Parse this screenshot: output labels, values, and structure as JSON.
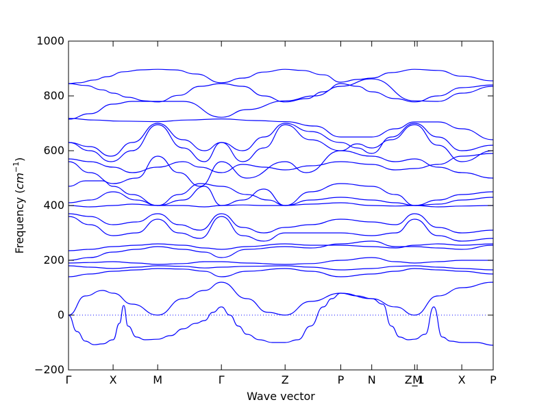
{
  "chart_data": {
    "type": "line",
    "title": "",
    "xlabel": "Wave vector",
    "ylabel": "Frequency",
    "ylabel_unit": "cm",
    "ylabel_unit_exp": "−1",
    "ylim": [
      -200,
      1000
    ],
    "yticks": [
      -200,
      0,
      200,
      400,
      600,
      800,
      1000
    ],
    "line_color": "#0000ff",
    "zero_line": {
      "y": 0,
      "style": "dotted"
    },
    "k_points": [
      {
        "label": "Γ",
        "x": 0.0
      },
      {
        "label": "X",
        "x": 0.105
      },
      {
        "label": "M",
        "x": 0.21
      },
      {
        "label": "Γ",
        "x": 0.36
      },
      {
        "label": "Z",
        "x": 0.51
      },
      {
        "label": "P",
        "x": 0.641
      },
      {
        "label": "N",
        "x": 0.714
      },
      {
        "label": "Z_1",
        "x": 0.815
      },
      {
        "label": "M",
        "x": 0.821
      },
      {
        "label": "X",
        "x": 0.926
      },
      {
        "label": "P",
        "x": 1.0
      }
    ],
    "xlim": [
      0,
      1
    ],
    "series": [
      {
        "x": [
          0,
          0.025,
          0.06,
          0.09,
          0.13,
          0.17,
          0.21,
          0.25,
          0.3,
          0.36,
          0.41,
          0.46,
          0.51,
          0.55,
          0.6,
          0.641,
          0.68,
          0.714,
          0.76,
          0.815,
          0.87,
          0.926,
          1.0
        ],
        "y": [
          845,
          848,
          858,
          870,
          888,
          895,
          897,
          895,
          880,
          848,
          865,
          887,
          897,
          893,
          877,
          850,
          860,
          865,
          885,
          897,
          893,
          872,
          855
        ]
      },
      {
        "x": [
          0,
          0.04,
          0.08,
          0.105,
          0.14,
          0.18,
          0.21,
          0.26,
          0.31,
          0.36,
          0.41,
          0.46,
          0.51,
          0.56,
          0.6,
          0.641,
          0.68,
          0.714,
          0.77,
          0.815,
          0.87,
          0.926,
          1.0
        ],
        "y": [
          845,
          838,
          822,
          810,
          795,
          782,
          778,
          802,
          835,
          845,
          835,
          800,
          778,
          790,
          815,
          845,
          835,
          815,
          790,
          778,
          800,
          830,
          840
        ]
      },
      {
        "x": [
          0,
          0.05,
          0.105,
          0.15,
          0.21,
          0.27,
          0.36,
          0.42,
          0.51,
          0.58,
          0.641,
          0.714,
          0.815,
          0.87,
          0.926,
          1.0
        ],
        "y": [
          715,
          735,
          770,
          780,
          780,
          780,
          722,
          750,
          782,
          800,
          835,
          862,
          782,
          780,
          810,
          835
        ]
      },
      {
        "x": [
          0,
          0.06,
          0.12,
          0.21,
          0.28,
          0.36,
          0.44,
          0.51,
          0.58,
          0.641,
          0.714,
          0.77,
          0.815,
          0.87,
          0.926,
          1.0
        ],
        "y": [
          718,
          712,
          708,
          706,
          712,
          716,
          710,
          706,
          690,
          650,
          650,
          680,
          705,
          705,
          680,
          640
        ]
      },
      {
        "x": [
          0,
          0.05,
          0.1,
          0.15,
          0.21,
          0.27,
          0.32,
          0.36,
          0.41,
          0.46,
          0.51,
          0.57,
          0.641,
          0.68,
          0.714,
          0.76,
          0.815,
          0.87,
          0.926,
          1.0
        ],
        "y": [
          630,
          615,
          580,
          630,
          700,
          640,
          600,
          630,
          600,
          650,
          700,
          670,
          630,
          610,
          590,
          650,
          700,
          650,
          600,
          620
        ]
      },
      {
        "x": [
          0,
          0.05,
          0.1,
          0.15,
          0.21,
          0.27,
          0.32,
          0.36,
          0.41,
          0.46,
          0.51,
          0.57,
          0.641,
          0.68,
          0.714,
          0.76,
          0.815,
          0.87,
          0.926,
          1.0
        ],
        "y": [
          630,
          600,
          560,
          600,
          695,
          610,
          560,
          630,
          560,
          610,
          695,
          640,
          600,
          625,
          610,
          640,
          695,
          620,
          560,
          600
        ]
      },
      {
        "x": [
          0,
          0.05,
          0.105,
          0.15,
          0.21,
          0.27,
          0.31,
          0.36,
          0.41,
          0.46,
          0.51,
          0.57,
          0.641,
          0.714,
          0.77,
          0.815,
          0.87,
          0.926,
          1.0
        ],
        "y": [
          570,
          560,
          540,
          520,
          540,
          560,
          540,
          520,
          550,
          540,
          530,
          545,
          560,
          550,
          530,
          535,
          550,
          580,
          590
        ]
      },
      {
        "x": [
          0,
          0.05,
          0.105,
          0.16,
          0.21,
          0.26,
          0.31,
          0.36,
          0.42,
          0.51,
          0.56,
          0.641,
          0.714,
          0.77,
          0.815,
          0.87,
          0.926,
          1.0
        ],
        "y": [
          560,
          520,
          480,
          500,
          580,
          520,
          470,
          560,
          500,
          560,
          520,
          600,
          580,
          560,
          570,
          540,
          520,
          500
        ]
      },
      {
        "x": [
          0,
          0.04,
          0.08,
          0.105,
          0.15,
          0.21,
          0.26,
          0.31,
          0.36,
          0.42,
          0.47,
          0.51,
          0.57,
          0.641,
          0.714,
          0.77,
          0.815,
          0.87,
          0.926,
          1.0
        ],
        "y": [
          470,
          490,
          490,
          470,
          440,
          400,
          440,
          480,
          470,
          440,
          420,
          400,
          450,
          480,
          470,
          440,
          400,
          420,
          440,
          450
        ]
      },
      {
        "x": [
          0,
          0.05,
          0.105,
          0.16,
          0.21,
          0.27,
          0.32,
          0.36,
          0.41,
          0.46,
          0.51,
          0.57,
          0.641,
          0.714,
          0.77,
          0.815,
          0.87,
          0.926,
          1.0
        ],
        "y": [
          410,
          420,
          450,
          420,
          400,
          420,
          470,
          400,
          420,
          460,
          400,
          420,
          430,
          420,
          410,
          400,
          405,
          420,
          430
        ]
      },
      {
        "x": [
          0,
          0.05,
          0.105,
          0.15,
          0.21,
          0.27,
          0.32,
          0.36,
          0.41,
          0.46,
          0.51,
          0.57,
          0.641,
          0.714,
          0.77,
          0.815,
          0.87,
          0.926,
          1.0
        ],
        "y": [
          400,
          395,
          400,
          405,
          400,
          400,
          395,
          400,
          402,
          400,
          400,
          405,
          410,
          400,
          398,
          400,
          395,
          398,
          400
        ]
      },
      {
        "x": [
          0,
          0.05,
          0.105,
          0.16,
          0.21,
          0.26,
          0.31,
          0.36,
          0.41,
          0.46,
          0.51,
          0.57,
          0.641,
          0.714,
          0.77,
          0.815,
          0.87,
          0.926,
          1.0
        ],
        "y": [
          370,
          360,
          330,
          340,
          370,
          330,
          310,
          370,
          320,
          300,
          320,
          330,
          350,
          340,
          330,
          370,
          320,
          300,
          310
        ]
      },
      {
        "x": [
          0,
          0.05,
          0.105,
          0.16,
          0.21,
          0.26,
          0.31,
          0.36,
          0.41,
          0.46,
          0.51,
          0.57,
          0.641,
          0.714,
          0.77,
          0.815,
          0.87,
          0.926,
          1.0
        ],
        "y": [
          360,
          330,
          290,
          300,
          350,
          300,
          280,
          360,
          290,
          270,
          300,
          300,
          300,
          290,
          300,
          350,
          290,
          270,
          280
        ]
      },
      {
        "x": [
          0,
          0.05,
          0.105,
          0.16,
          0.21,
          0.27,
          0.32,
          0.36,
          0.42,
          0.51,
          0.57,
          0.641,
          0.714,
          0.77,
          0.815,
          0.87,
          0.926,
          1.0
        ],
        "y": [
          235,
          240,
          250,
          255,
          260,
          255,
          245,
          240,
          250,
          260,
          255,
          255,
          250,
          245,
          255,
          260,
          255,
          260
        ]
      },
      {
        "x": [
          0,
          0.05,
          0.105,
          0.16,
          0.21,
          0.27,
          0.32,
          0.36,
          0.42,
          0.51,
          0.57,
          0.641,
          0.714,
          0.77,
          0.815,
          0.87,
          0.926,
          1.0
        ],
        "y": [
          200,
          210,
          230,
          240,
          250,
          240,
          230,
          210,
          240,
          250,
          245,
          260,
          270,
          250,
          250,
          245,
          240,
          255
        ]
      },
      {
        "x": [
          0,
          0.05,
          0.105,
          0.16,
          0.21,
          0.27,
          0.32,
          0.36,
          0.42,
          0.51,
          0.57,
          0.641,
          0.714,
          0.77,
          0.815,
          0.87,
          0.926,
          1.0
        ],
        "y": [
          190,
          192,
          195,
          190,
          185,
          188,
          195,
          195,
          190,
          185,
          188,
          200,
          210,
          195,
          190,
          195,
          200,
          200
        ]
      },
      {
        "x": [
          0,
          0.05,
          0.105,
          0.16,
          0.21,
          0.27,
          0.32,
          0.36,
          0.42,
          0.51,
          0.57,
          0.641,
          0.714,
          0.77,
          0.815,
          0.87,
          0.926,
          1.0
        ],
        "y": [
          180,
          175,
          170,
          175,
          180,
          178,
          172,
          175,
          178,
          180,
          175,
          165,
          170,
          178,
          180,
          175,
          170,
          165
        ]
      },
      {
        "x": [
          0,
          0.05,
          0.105,
          0.16,
          0.21,
          0.27,
          0.32,
          0.36,
          0.42,
          0.51,
          0.57,
          0.641,
          0.714,
          0.77,
          0.815,
          0.87,
          0.926,
          1.0
        ],
        "y": [
          140,
          150,
          160,
          165,
          170,
          168,
          160,
          140,
          160,
          170,
          160,
          140,
          150,
          160,
          170,
          165,
          160,
          150
        ]
      },
      {
        "x": [
          0,
          0.04,
          0.08,
          0.105,
          0.15,
          0.21,
          0.27,
          0.32,
          0.36,
          0.42,
          0.47,
          0.51,
          0.57,
          0.641,
          0.714,
          0.77,
          0.815,
          0.87,
          0.926,
          1.0
        ],
        "y": [
          0,
          70,
          90,
          80,
          40,
          0,
          60,
          90,
          120,
          60,
          10,
          0,
          50,
          80,
          60,
          30,
          0,
          70,
          100,
          120
        ]
      },
      {
        "x": [
          0,
          0.02,
          0.04,
          0.06,
          0.08,
          0.105,
          0.12,
          0.13,
          0.14,
          0.16,
          0.18,
          0.21,
          0.24,
          0.27,
          0.3,
          0.32,
          0.34,
          0.36
        ],
        "y": [
          0,
          -60,
          -95,
          -108,
          -105,
          -90,
          -30,
          35,
          -40,
          -80,
          -90,
          -88,
          -75,
          -50,
          -30,
          -20,
          10,
          30
        ]
      },
      {
        "x": [
          0.36,
          0.38,
          0.4,
          0.42,
          0.45,
          0.48,
          0.51,
          0.54,
          0.57,
          0.6,
          0.62,
          0.641,
          0.68,
          0.714,
          0.74,
          0.76,
          0.78,
          0.8,
          0.815,
          0.84,
          0.86,
          0.88,
          0.9,
          0.926,
          0.96,
          1.0
        ],
        "y": [
          30,
          0,
          -40,
          -70,
          -90,
          -100,
          -100,
          -90,
          -40,
          30,
          60,
          80,
          70,
          60,
          40,
          -40,
          -80,
          -90,
          -88,
          -70,
          30,
          -80,
          -95,
          -100,
          -100,
          -110
        ]
      }
    ]
  }
}
